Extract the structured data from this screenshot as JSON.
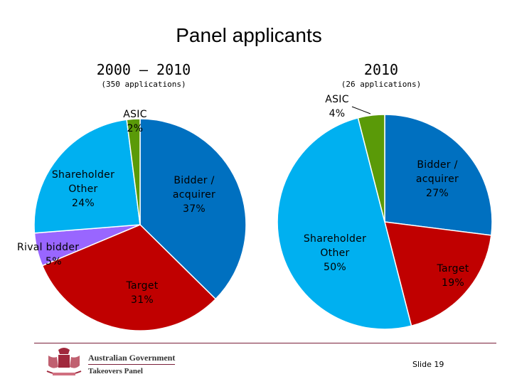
{
  "title": "Panel applicants",
  "chart_data": [
    {
      "type": "pie",
      "title": "2000 – 2010",
      "subtitle": "(350 applications)",
      "slices": [
        {
          "label": "Bidder / acquirer",
          "value": 37,
          "color": "#0070C0"
        },
        {
          "label": "Target",
          "value": 31,
          "color": "#C00000"
        },
        {
          "label": "Rival bidder",
          "value": 5,
          "color": "#9966FF"
        },
        {
          "label": "Shareholder Other",
          "value": 24,
          "color": "#00B0F0"
        },
        {
          "label": "ASIC",
          "value": 2,
          "color": "#5A9A08"
        }
      ]
    },
    {
      "type": "pie",
      "title": "2010",
      "subtitle": "(26 applications)",
      "slices": [
        {
          "label": "Bidder / acquirer",
          "value": 27,
          "color": "#0070C0"
        },
        {
          "label": "Target",
          "value": 19,
          "color": "#C00000"
        },
        {
          "label": "Shareholder Other",
          "value": 50,
          "color": "#00B0F0"
        },
        {
          "label": "ASIC",
          "value": 4,
          "color": "#5A9A08"
        }
      ]
    }
  ],
  "labels": {
    "c1": [
      {
        "lines": [
          "Bidder /",
          "acquirer"
        ],
        "pct": "37%"
      },
      {
        "lines": [
          "Target"
        ],
        "pct": "31%"
      },
      {
        "lines": [
          "Rival bidder"
        ],
        "pct": "5%"
      },
      {
        "lines": [
          "Shareholder",
          "Other"
        ],
        "pct": "24%"
      },
      {
        "lines": [
          "ASIC"
        ],
        "pct": "2%"
      }
    ],
    "c2": [
      {
        "lines": [
          "Bidder /",
          "acquirer"
        ],
        "pct": "27%"
      },
      {
        "lines": [
          "Target"
        ],
        "pct": "19%"
      },
      {
        "lines": [
          "Shareholder",
          "Other"
        ],
        "pct": "50%"
      },
      {
        "lines": [
          "ASIC"
        ],
        "pct": "4%"
      }
    ]
  },
  "footer": {
    "gov": "Australian Government",
    "panel": "Takeovers Panel",
    "slide": "Slide 19"
  }
}
